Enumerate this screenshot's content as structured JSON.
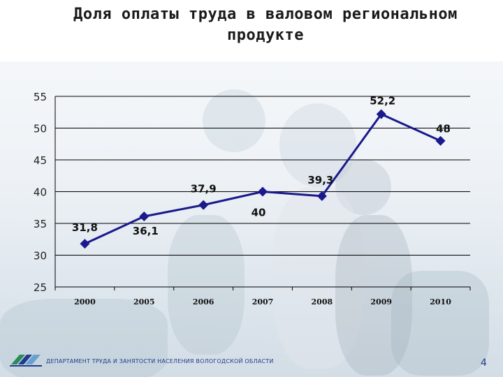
{
  "title": {
    "line1": "Доля оплаты труда в валовом региональном",
    "line2": "продукте"
  },
  "footer": {
    "organization": "ДЕПАРТАМЕНТ ТРУДА И ЗАНЯТОСТИ НАСЕЛЕНИЯ ВОЛОГОДСКОЙ ОБЛАСТИ",
    "page_number": "4"
  },
  "colors": {
    "series": "#1a1a8c",
    "grid": "#000000"
  },
  "chart_data": {
    "type": "line",
    "title": "Доля оплаты труда в валовом региональном продукте",
    "xlabel": "",
    "ylabel": "",
    "categories": [
      "2000",
      "2005",
      "2006",
      "2007",
      "2008",
      "2009",
      "2010"
    ],
    "series": [
      {
        "values": [
          31.8,
          36.1,
          37.9,
          40,
          39.3,
          52.2,
          48
        ],
        "labels": [
          "31,8",
          "36,1",
          "37,9",
          "40",
          "39,3",
          "52,2",
          "48"
        ]
      }
    ],
    "yticks": [
      "25",
      "30",
      "35",
      "40",
      "45",
      "50",
      "55"
    ],
    "ylim": [
      25,
      55
    ],
    "grid": true,
    "legend": "none",
    "marker": "diamond"
  }
}
